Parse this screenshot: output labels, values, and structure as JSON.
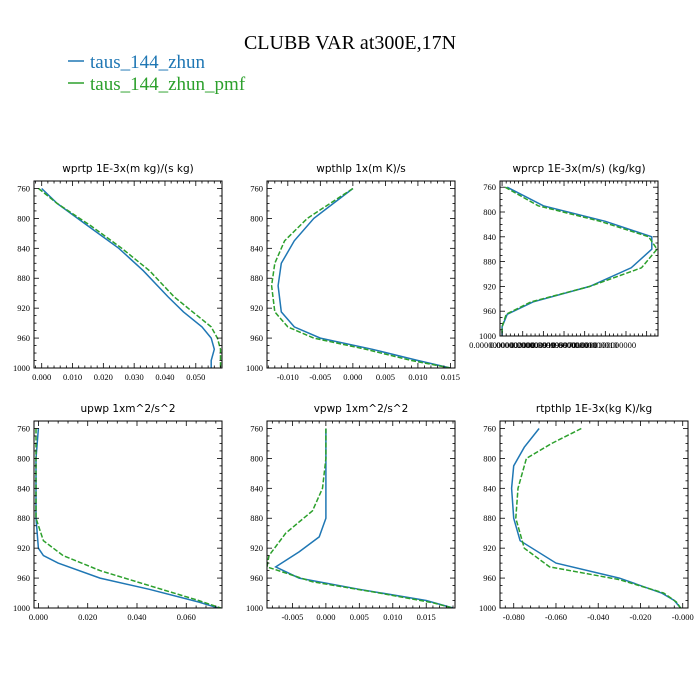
{
  "figure": {
    "title": "CLUBB VAR at300E,17N",
    "legend": [
      {
        "label": "taus_144_zhun",
        "color": "#1f77b4"
      },
      {
        "label": "taus_144_zhun_pmf",
        "color": "#2ca02c"
      }
    ]
  },
  "chart_data": [
    {
      "type": "line",
      "title": "wprtp  1E-3x(m kg)/(s kg)",
      "xlim": [
        -0.0025,
        0.0585
      ],
      "ylim": [
        1000,
        750
      ],
      "x_ticks": [
        0.0,
        0.01,
        0.02,
        0.03,
        0.04,
        0.05
      ],
      "x_tick_labels": [
        "0.000",
        "0.010",
        "0.020",
        "0.030",
        "0.040",
        "0.050"
      ],
      "y_ticks": [
        760,
        800,
        840,
        880,
        920,
        960,
        1000
      ],
      "series": [
        {
          "name": "taus_144_zhun",
          "points": [
            [
              0.0,
              760
            ],
            [
              0.005,
              780
            ],
            [
              0.015,
              810
            ],
            [
              0.025,
              840
            ],
            [
              0.033,
              870
            ],
            [
              0.041,
              905
            ],
            [
              0.046,
              925
            ],
            [
              0.052,
              945
            ],
            [
              0.055,
              960
            ],
            [
              0.056,
              975
            ],
            [
              0.055,
              990
            ],
            [
              0.055,
              1000
            ]
          ]
        },
        {
          "name": "taus_144_zhun_pmf",
          "points": [
            [
              -0.001,
              760
            ],
            [
              0.005,
              780
            ],
            [
              0.016,
              810
            ],
            [
              0.026,
              840
            ],
            [
              0.035,
              870
            ],
            [
              0.043,
              905
            ],
            [
              0.049,
              925
            ],
            [
              0.055,
              945
            ],
            [
              0.057,
              960
            ],
            [
              0.058,
              975
            ],
            [
              0.058,
              990
            ],
            [
              0.058,
              1000
            ]
          ]
        }
      ]
    },
    {
      "type": "line",
      "title": "wpthlp  1x(m K)/s",
      "xlim": [
        -0.0132,
        0.0157
      ],
      "ylim": [
        1000,
        750
      ],
      "x_ticks": [
        -0.01,
        -0.005,
        0.0,
        0.005,
        0.01,
        0.015
      ],
      "x_tick_labels": [
        "-0.010",
        "-0.005",
        "0.000",
        "0.005",
        "0.010",
        "0.015"
      ],
      "y_ticks": [
        760,
        800,
        840,
        880,
        920,
        960,
        1000
      ],
      "series": [
        {
          "name": "taus_144_zhun",
          "points": [
            [
              0.0,
              760
            ],
            [
              -0.003,
              780
            ],
            [
              -0.006,
              800
            ],
            [
              -0.009,
              830
            ],
            [
              -0.011,
              860
            ],
            [
              -0.0115,
              890
            ],
            [
              -0.011,
              925
            ],
            [
              -0.009,
              945
            ],
            [
              -0.005,
              960
            ],
            [
              0.003,
              975
            ],
            [
              0.01,
              990
            ],
            [
              0.015,
              1000
            ]
          ]
        },
        {
          "name": "taus_144_zhun_pmf",
          "points": [
            [
              0.0,
              760
            ],
            [
              -0.0035,
              780
            ],
            [
              -0.007,
              800
            ],
            [
              -0.0105,
              830
            ],
            [
              -0.012,
              860
            ],
            [
              -0.0125,
              890
            ],
            [
              -0.012,
              925
            ],
            [
              -0.01,
              945
            ],
            [
              -0.006,
              960
            ],
            [
              0.002,
              975
            ],
            [
              0.009,
              990
            ],
            [
              0.015,
              1000
            ]
          ]
        }
      ]
    },
    {
      "type": "line",
      "title": "wprcp  1E-3x(m/s) (kg/kg)",
      "xlim": [
        -2e-07,
        1.51e-05
      ],
      "ylim": [
        1000,
        750
      ],
      "x_ticks": [
        0.0,
        2e-06,
        4e-06,
        6e-06,
        8e-06,
        1e-05
      ],
      "x_tick_labels": [
        "0.00000000000000",
        "0.00000200000010",
        "0.00000399999970",
        "0.00000600000010",
        "0.00000800000010",
        "0.0000100000000"
      ],
      "y_ticks": [
        760,
        800,
        840,
        880,
        920,
        960,
        1000
      ],
      "series": [
        {
          "name": "taus_144_zhun",
          "points": [
            [
              5e-07,
              760
            ],
            [
              4e-06,
              790
            ],
            [
              1e-05,
              815
            ],
            [
              1.45e-05,
              840
            ],
            [
              1.45e-05,
              860
            ],
            [
              1.25e-05,
              890
            ],
            [
              8.5e-06,
              920
            ],
            [
              3e-06,
              945
            ],
            [
              5e-07,
              965
            ],
            [
              0.0,
              985
            ],
            [
              0.0,
              1000
            ]
          ]
        },
        {
          "name": "taus_144_zhun_pmf",
          "points": [
            [
              3e-07,
              760
            ],
            [
              3.5e-06,
              790
            ],
            [
              9.5e-06,
              815
            ],
            [
              1.42e-05,
              840
            ],
            [
              1.5e-05,
              860
            ],
            [
              1.35e-05,
              890
            ],
            [
              8.5e-06,
              920
            ],
            [
              2.8e-06,
              945
            ],
            [
              4e-07,
              965
            ],
            [
              0.0,
              985
            ],
            [
              0.0,
              1000
            ]
          ]
        }
      ]
    },
    {
      "type": "line",
      "title": "upwp  1xm^2/s^2",
      "xlim": [
        -0.0018,
        0.0745
      ],
      "ylim": [
        1000,
        750
      ],
      "x_ticks": [
        0.0,
        0.02,
        0.04,
        0.06
      ],
      "x_tick_labels": [
        "0.000",
        "0.020",
        "0.040",
        "0.060"
      ],
      "y_ticks": [
        760,
        800,
        840,
        880,
        920,
        960,
        1000
      ],
      "series": [
        {
          "name": "taus_144_zhun",
          "points": [
            [
              0.0,
              760
            ],
            [
              -0.001,
              800
            ],
            [
              -0.001,
              840
            ],
            [
              -0.001,
              880
            ],
            [
              0.0,
              920
            ],
            [
              0.002,
              930
            ],
            [
              0.008,
              940
            ],
            [
              0.025,
              960
            ],
            [
              0.045,
              975
            ],
            [
              0.065,
              992
            ],
            [
              0.073,
              1000
            ]
          ]
        },
        {
          "name": "taus_144_zhun_pmf",
          "points": [
            [
              -0.001,
              760
            ],
            [
              -0.001,
              800
            ],
            [
              -0.001,
              840
            ],
            [
              -0.001,
              880
            ],
            [
              0.002,
              910
            ],
            [
              0.01,
              930
            ],
            [
              0.025,
              950
            ],
            [
              0.045,
              970
            ],
            [
              0.065,
              990
            ],
            [
              0.074,
              1000
            ]
          ]
        }
      ]
    },
    {
      "type": "line",
      "title": "vpwp  1xm^2/s^2",
      "xlim": [
        -0.0088,
        0.0193
      ],
      "ylim": [
        1000,
        750
      ],
      "x_ticks": [
        -0.005,
        0.0,
        0.005,
        0.01,
        0.015
      ],
      "x_tick_labels": [
        "-0.005",
        "0.000",
        "0.005",
        "0.010",
        "0.015"
      ],
      "y_ticks": [
        760,
        800,
        840,
        880,
        920,
        960,
        1000
      ],
      "series": [
        {
          "name": "taus_144_zhun",
          "points": [
            [
              0.0,
              760
            ],
            [
              0.0,
              800
            ],
            [
              0.0,
              840
            ],
            [
              0.0,
              880
            ],
            [
              -0.001,
              905
            ],
            [
              -0.004,
              925
            ],
            [
              -0.0075,
              945
            ],
            [
              -0.004,
              960
            ],
            [
              0.005,
              975
            ],
            [
              0.015,
              990
            ],
            [
              0.019,
              1000
            ]
          ]
        },
        {
          "name": "taus_144_zhun_pmf",
          "points": [
            [
              0.0,
              760
            ],
            [
              0.0,
              800
            ],
            [
              -0.0005,
              840
            ],
            [
              -0.002,
              870
            ],
            [
              -0.006,
              900
            ],
            [
              -0.0085,
              930
            ],
            [
              -0.0088,
              945
            ],
            [
              -0.002,
              965
            ],
            [
              0.008,
              980
            ],
            [
              0.016,
              993
            ],
            [
              0.019,
              1000
            ]
          ]
        }
      ]
    },
    {
      "type": "line",
      "title": "rtpthlp  1E-3x(kg K)/kg",
      "xlim": [
        -0.0865,
        0.0025
      ],
      "ylim": [
        1000,
        750
      ],
      "x_ticks": [
        -0.08,
        -0.06,
        -0.04,
        -0.02,
        -0.0
      ],
      "x_tick_labels": [
        "-0.080",
        "-0.060",
        "-0.040",
        "-0.020",
        "-0.000"
      ],
      "y_ticks": [
        760,
        800,
        840,
        880,
        920,
        960,
        1000
      ],
      "series": [
        {
          "name": "taus_144_zhun",
          "points": [
            [
              -0.068,
              760
            ],
            [
              -0.075,
              785
            ],
            [
              -0.08,
              810
            ],
            [
              -0.081,
              840
            ],
            [
              -0.08,
              880
            ],
            [
              -0.077,
              910
            ],
            [
              -0.06,
              940
            ],
            [
              -0.03,
              960
            ],
            [
              -0.01,
              980
            ],
            [
              -0.004,
              990
            ],
            [
              -0.001,
              1000
            ]
          ]
        },
        {
          "name": "taus_144_zhun_pmf",
          "points": [
            [
              -0.048,
              760
            ],
            [
              -0.062,
              780
            ],
            [
              -0.074,
              800
            ],
            [
              -0.078,
              840
            ],
            [
              -0.079,
              880
            ],
            [
              -0.075,
              920
            ],
            [
              -0.063,
              945
            ],
            [
              -0.03,
              962
            ],
            [
              -0.009,
              980
            ],
            [
              -0.003,
              992
            ],
            [
              -0.001,
              1000
            ]
          ]
        }
      ]
    }
  ]
}
